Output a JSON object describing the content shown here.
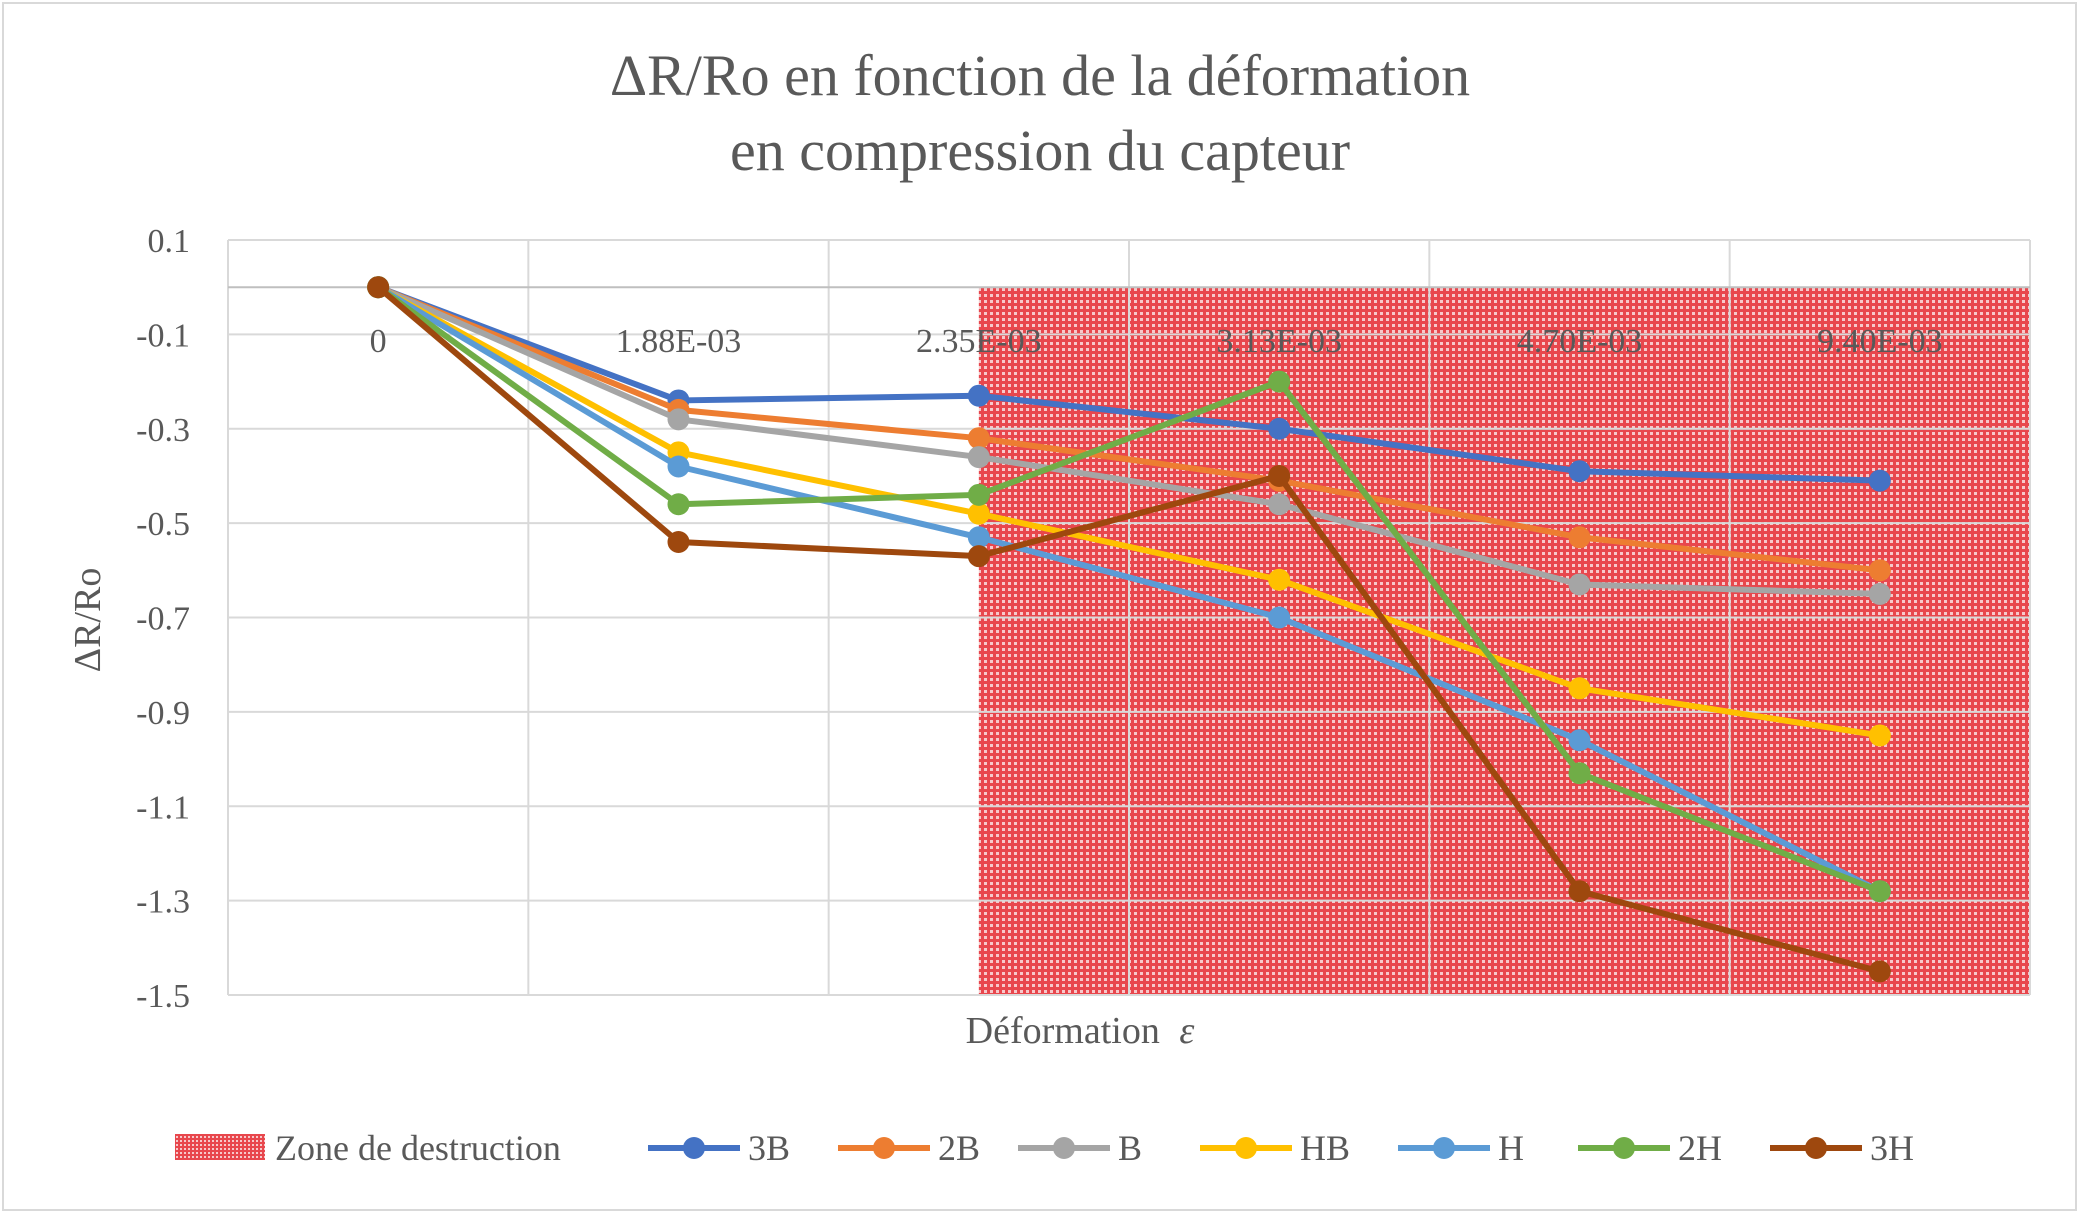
{
  "chart_data": {
    "type": "line",
    "title_line1": "ΔR/Ro en fonction de la déformation",
    "title_line2": "en compression du capteur",
    "xlabel_main": "Déformation",
    "xlabel_symbol": "ε",
    "ylabel": "ΔR/Ro",
    "categories": [
      "0",
      "1.88E-03",
      "2.35E-03",
      "3.13E-03",
      "4.70E-03",
      "9.40E-03"
    ],
    "ylim": [
      -1.5,
      0.1
    ],
    "yticks": [
      "0.1",
      "-0.1",
      "-0.3",
      "-0.5",
      "-0.7",
      "-0.9",
      "-1.1",
      "-1.3",
      "-1.5"
    ],
    "grid": true,
    "legend_position": "bottom",
    "zone": {
      "name": "Zone de destruction",
      "x_start": 2.5,
      "x_end": 6,
      "y_top": 0,
      "y_bottom": -1.5,
      "color": "#d9272e"
    },
    "series": [
      {
        "name": "3B",
        "color": "#4472c4",
        "values": [
          0,
          -0.24,
          -0.23,
          -0.3,
          -0.39,
          -0.41
        ]
      },
      {
        "name": "2B",
        "color": "#ed7d31",
        "values": [
          0,
          -0.26,
          -0.32,
          -0.41,
          -0.53,
          -0.6
        ]
      },
      {
        "name": "B",
        "color": "#a5a5a5",
        "values": [
          0,
          -0.28,
          -0.36,
          -0.46,
          -0.63,
          -0.65
        ]
      },
      {
        "name": "HB",
        "color": "#ffc000",
        "values": [
          0,
          -0.35,
          -0.48,
          -0.62,
          -0.85,
          -0.95
        ]
      },
      {
        "name": "H",
        "color": "#5b9bd5",
        "values": [
          0,
          -0.38,
          -0.53,
          -0.7,
          -0.96,
          -1.28
        ]
      },
      {
        "name": "2H",
        "color": "#70ad47",
        "values": [
          0,
          -0.46,
          -0.44,
          -0.2,
          -1.03,
          -1.28
        ]
      },
      {
        "name": "3H",
        "color": "#9e480e",
        "values": [
          0,
          -0.54,
          -0.57,
          -0.4,
          -1.28,
          -1.45
        ]
      }
    ]
  }
}
